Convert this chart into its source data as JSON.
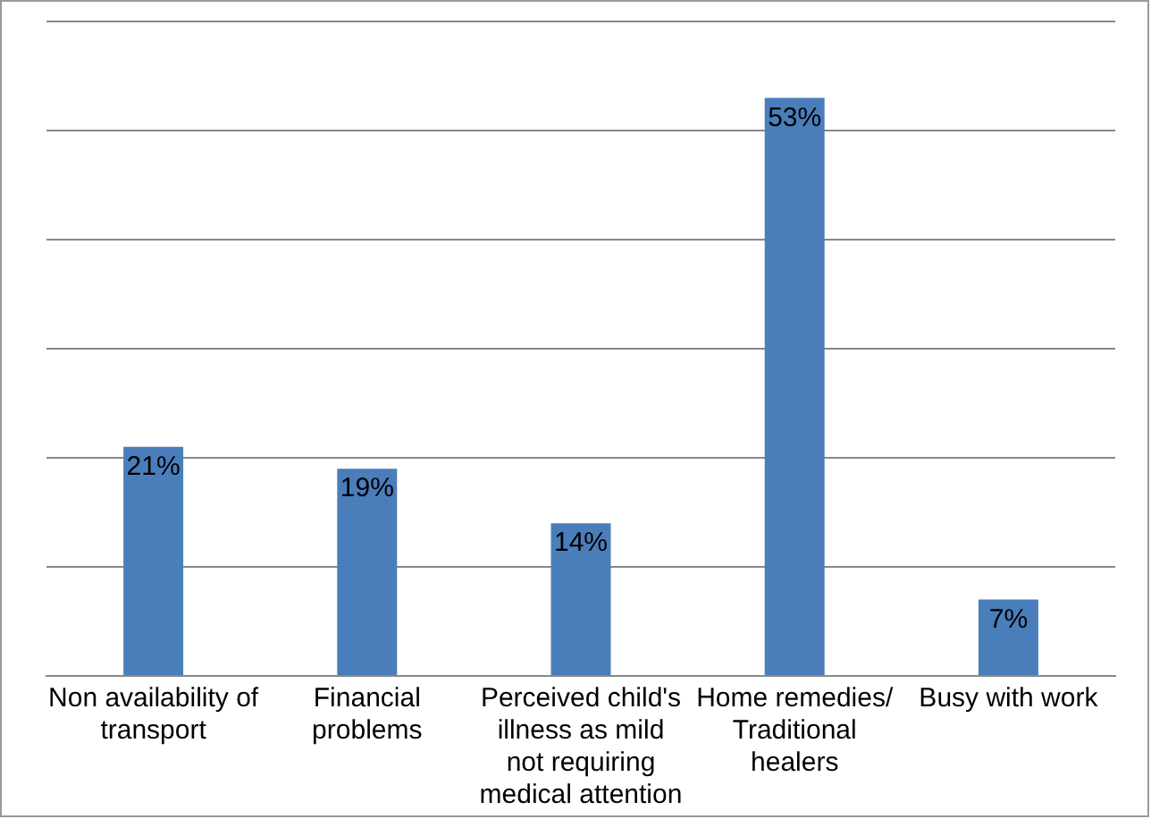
{
  "chart_data": {
    "type": "bar",
    "categories": [
      "Non availability of transport",
      "Financial problems",
      "Perceived child's illness as mild not requiring medical attention",
      "Home remedies/ Traditional healers",
      "Busy with work"
    ],
    "values": [
      21,
      19,
      14,
      53,
      7
    ],
    "value_labels": [
      "21%",
      "19%",
      "14%",
      "53%",
      "7%"
    ],
    "color": "#4a7ebb",
    "ylim": [
      0,
      60
    ],
    "yticks": [
      {
        "value": 0,
        "label": null
      },
      {
        "value": 10,
        "label": null
      },
      {
        "value": 20,
        "label": null
      },
      {
        "value": 30,
        "label": null
      },
      {
        "value": 40,
        "label": null
      },
      {
        "value": 50,
        "label": null
      },
      {
        "value": 60,
        "label": null
      }
    ],
    "grid": "y",
    "tick_labels": "x",
    "legend": false
  }
}
